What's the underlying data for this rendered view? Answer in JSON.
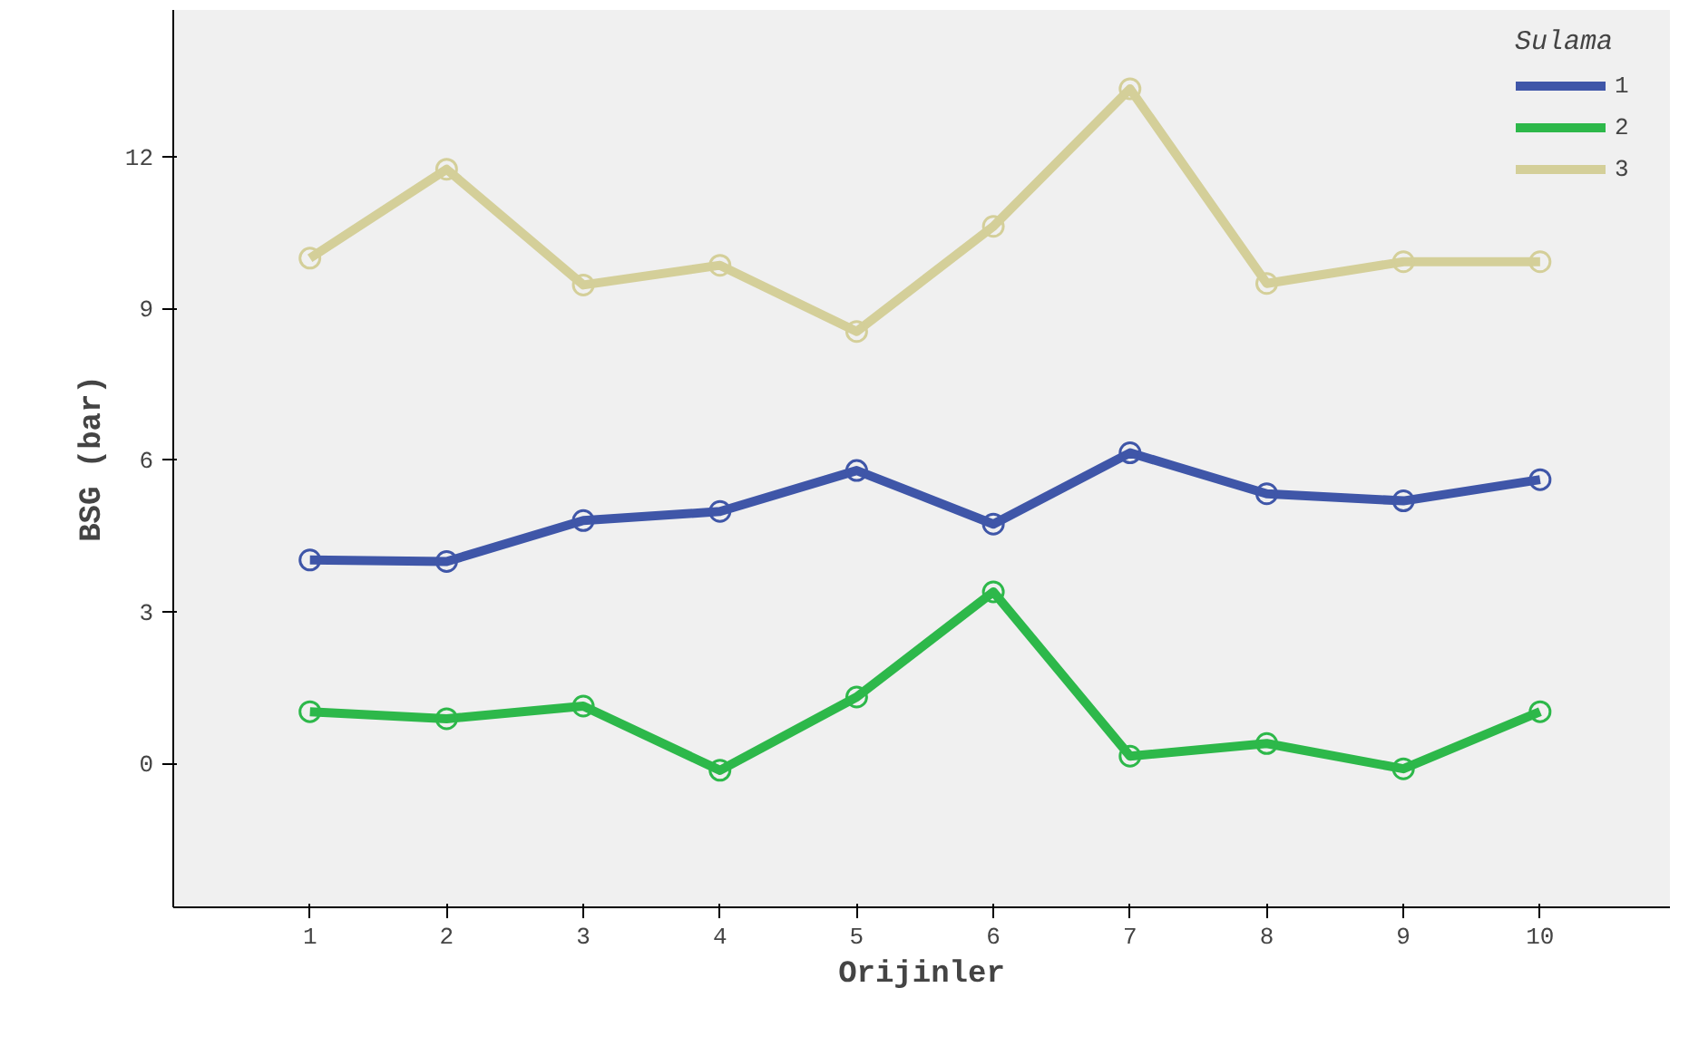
{
  "chart_data": {
    "type": "line",
    "xlabel": "Orijinler",
    "ylabel": "BSG (bar)",
    "legend_title": "Sulama",
    "legend": "top right",
    "marker": "circle",
    "grid": false,
    "x": [
      1,
      2,
      3,
      4,
      5,
      6,
      7,
      8,
      9,
      10
    ],
    "xlim": [
      0,
      10.95
    ],
    "xticks": [
      1,
      2,
      3,
      4,
      5,
      6,
      7,
      8,
      9,
      10
    ],
    "ylim": [
      -2.85,
      14.9
    ],
    "yticks": [
      0,
      3,
      6,
      9,
      12
    ],
    "series": [
      {
        "name": "1",
        "color": "#3f56a8",
        "values": [
          4.02,
          3.99,
          4.8,
          4.98,
          5.79,
          4.73,
          6.14,
          5.33,
          5.19,
          5.61
        ]
      },
      {
        "name": "2",
        "color": "#2db84a",
        "values": [
          1.02,
          0.88,
          1.13,
          -0.14,
          1.31,
          3.39,
          0.14,
          0.39,
          -0.11,
          1.02
        ]
      },
      {
        "name": "3",
        "color": "#d4cf99",
        "values": [
          9.99,
          11.75,
          9.46,
          9.85,
          8.54,
          10.62,
          13.34,
          9.49,
          9.92,
          9.92
        ]
      }
    ]
  }
}
